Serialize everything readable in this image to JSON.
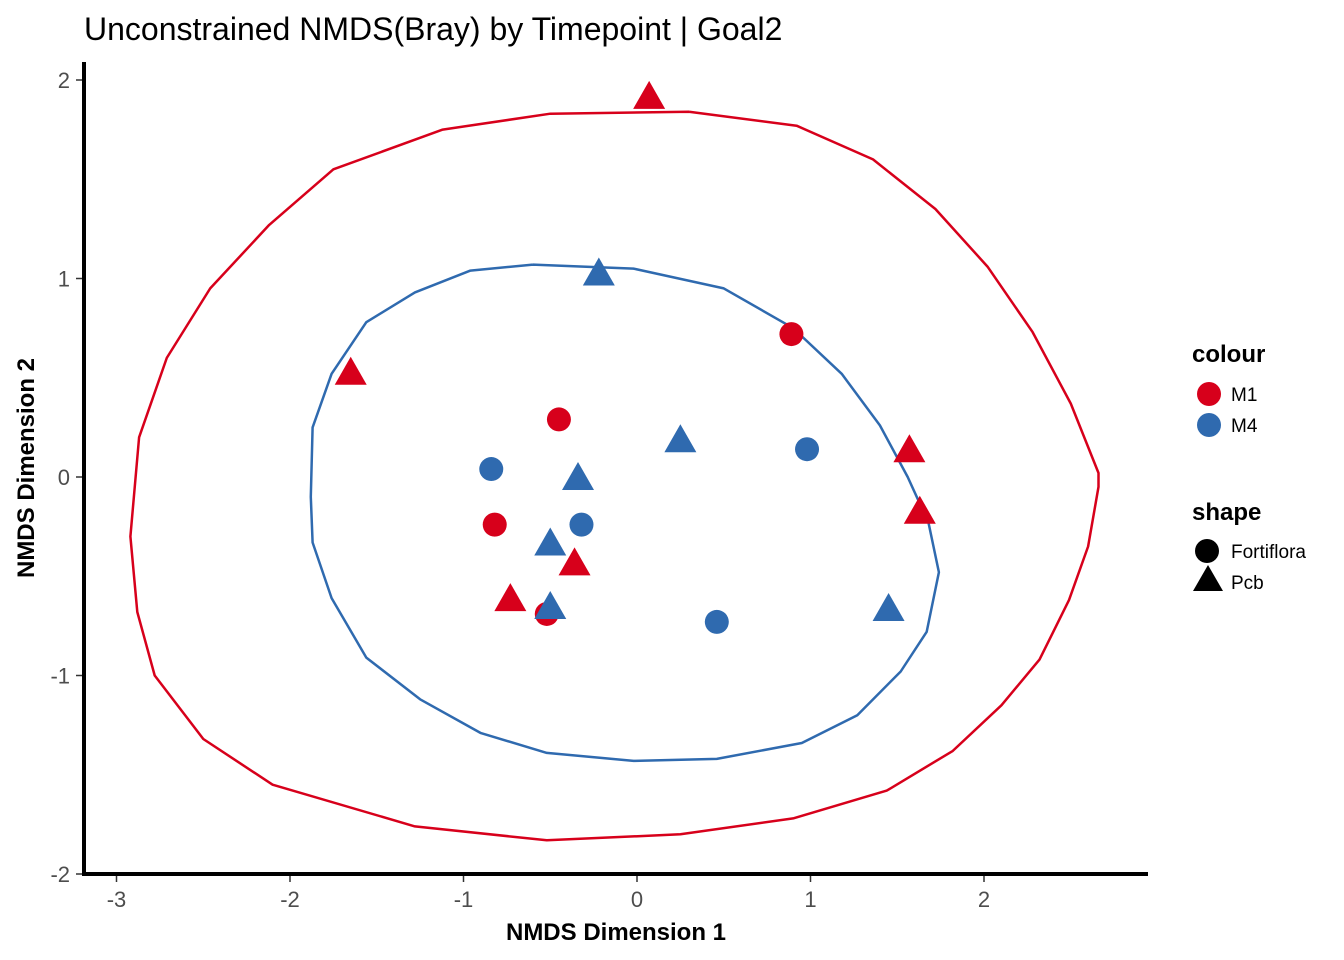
{
  "chart_data": {
    "type": "scatter",
    "title": "Unconstrained NMDS(Bray) by Timepoint | Goal2",
    "xlabel": "NMDS Dimension 1",
    "ylabel": "NMDS Dimension 2",
    "xlim": [
      -3.2,
      2.95
    ],
    "ylim": [
      -2.0,
      2.1
    ],
    "x_ticks": [
      -3,
      -2,
      -1,
      0,
      1,
      2
    ],
    "y_ticks": [
      -2,
      -1,
      0,
      1,
      2
    ],
    "x_tick_labels": [
      "-3",
      "-2",
      "-1",
      "0",
      "1",
      "2"
    ],
    "y_tick_labels": [
      "-2",
      "-1",
      "0",
      "1",
      "2"
    ],
    "grid": false,
    "legend_position": "right",
    "colors": {
      "M1": "#d7001b",
      "M4": "#2f6aaf"
    },
    "legends": [
      {
        "title": "colour",
        "entries": [
          {
            "label": "M1",
            "key": "M1"
          },
          {
            "label": "M4",
            "key": "M4"
          }
        ]
      },
      {
        "title": "shape",
        "entries": [
          {
            "label": "Fortiflora",
            "shape": "circle"
          },
          {
            "label": "Pcb",
            "shape": "triangle"
          }
        ]
      }
    ],
    "points": [
      {
        "group": "M1",
        "shape": "triangle",
        "x": 0.07,
        "y": 1.92
      },
      {
        "group": "M1",
        "shape": "triangle",
        "x": -1.65,
        "y": 0.53
      },
      {
        "group": "M1",
        "shape": "circle",
        "x": 0.89,
        "y": 0.72
      },
      {
        "group": "M1",
        "shape": "circle",
        "x": -0.45,
        "y": 0.29
      },
      {
        "group": "M1",
        "shape": "triangle",
        "x": 1.57,
        "y": 0.14
      },
      {
        "group": "M1",
        "shape": "triangle",
        "x": 1.63,
        "y": -0.17
      },
      {
        "group": "M1",
        "shape": "circle",
        "x": -0.82,
        "y": -0.24
      },
      {
        "group": "M1",
        "shape": "triangle",
        "x": -0.36,
        "y": -0.43
      },
      {
        "group": "M1",
        "shape": "triangle",
        "x": -0.73,
        "y": -0.61
      },
      {
        "group": "M1",
        "shape": "circle",
        "x": -0.52,
        "y": -0.69
      },
      {
        "group": "M4",
        "shape": "triangle",
        "x": -0.22,
        "y": 1.03
      },
      {
        "group": "M4",
        "shape": "triangle",
        "x": 0.25,
        "y": 0.19
      },
      {
        "group": "M4",
        "shape": "circle",
        "x": -0.84,
        "y": 0.04
      },
      {
        "group": "M4",
        "shape": "circle",
        "x": 0.98,
        "y": 0.14
      },
      {
        "group": "M4",
        "shape": "triangle",
        "x": -0.34,
        "y": 0.0
      },
      {
        "group": "M4",
        "shape": "circle",
        "x": -0.32,
        "y": -0.24
      },
      {
        "group": "M4",
        "shape": "triangle",
        "x": -0.5,
        "y": -0.33
      },
      {
        "group": "M4",
        "shape": "triangle",
        "x": -0.5,
        "y": -0.65
      },
      {
        "group": "M4",
        "shape": "circle",
        "x": 0.46,
        "y": -0.73
      },
      {
        "group": "M4",
        "shape": "triangle",
        "x": 1.45,
        "y": -0.66
      }
    ],
    "ellipses": [
      {
        "group": "M1",
        "path": [
          [
            0.3,
            1.84
          ],
          [
            0.92,
            1.77
          ],
          [
            1.36,
            1.6
          ],
          [
            1.72,
            1.35
          ],
          [
            2.02,
            1.06
          ],
          [
            2.28,
            0.73
          ],
          [
            2.5,
            0.37
          ],
          [
            2.66,
            0.02
          ],
          [
            2.66,
            -0.05
          ],
          [
            2.6,
            -0.35
          ],
          [
            2.49,
            -0.62
          ],
          [
            2.32,
            -0.92
          ],
          [
            2.1,
            -1.15
          ],
          [
            1.82,
            -1.38
          ],
          [
            1.44,
            -1.58
          ],
          [
            0.9,
            -1.72
          ],
          [
            0.25,
            -1.8
          ],
          [
            -0.52,
            -1.83
          ],
          [
            -1.28,
            -1.76
          ],
          [
            -2.1,
            -1.55
          ],
          [
            -2.5,
            -1.32
          ],
          [
            -2.78,
            -1.0
          ],
          [
            -2.88,
            -0.68
          ],
          [
            -2.92,
            -0.3
          ],
          [
            -2.87,
            0.2
          ],
          [
            -2.71,
            0.6
          ],
          [
            -2.46,
            0.95
          ],
          [
            -2.12,
            1.27
          ],
          [
            -1.75,
            1.55
          ],
          [
            -1.12,
            1.75
          ],
          [
            -0.5,
            1.83
          ],
          [
            0.3,
            1.84
          ]
        ]
      },
      {
        "group": "M4",
        "path": [
          [
            -0.6,
            1.07
          ],
          [
            -0.02,
            1.05
          ],
          [
            0.5,
            0.95
          ],
          [
            0.9,
            0.75
          ],
          [
            1.18,
            0.52
          ],
          [
            1.4,
            0.26
          ],
          [
            1.56,
            0.0
          ],
          [
            1.68,
            -0.23
          ],
          [
            1.74,
            -0.48
          ],
          [
            1.67,
            -0.78
          ],
          [
            1.52,
            -0.98
          ],
          [
            1.27,
            -1.2
          ],
          [
            0.95,
            -1.34
          ],
          [
            0.46,
            -1.42
          ],
          [
            -0.02,
            -1.43
          ],
          [
            -0.52,
            -1.39
          ],
          [
            -0.9,
            -1.29
          ],
          [
            -1.25,
            -1.12
          ],
          [
            -1.56,
            -0.91
          ],
          [
            -1.76,
            -0.61
          ],
          [
            -1.87,
            -0.33
          ],
          [
            -1.88,
            -0.1
          ],
          [
            -1.87,
            0.25
          ],
          [
            -1.76,
            0.52
          ],
          [
            -1.56,
            0.78
          ],
          [
            -1.28,
            0.93
          ],
          [
            -0.96,
            1.04
          ],
          [
            -0.6,
            1.07
          ]
        ]
      }
    ]
  }
}
